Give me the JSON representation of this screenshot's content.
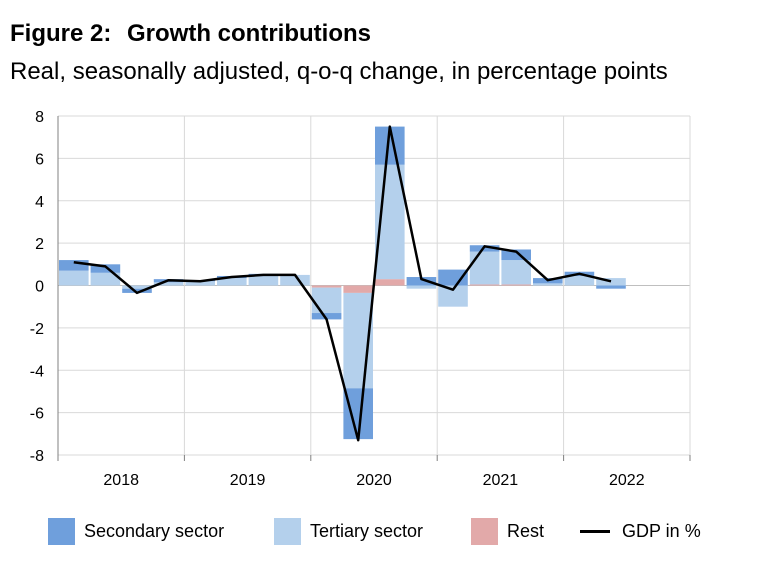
{
  "header": {
    "figure_label": "Figure 2:",
    "title": "Growth contributions",
    "subtitle": "Real, seasonally adjusted, q-o-q change, in percentage points"
  },
  "colors": {
    "secondary": "#6f9fdc",
    "tertiary": "#b4d0ec",
    "rest": "#e2a9a9",
    "gdp": "#000000",
    "grid": "#d9d9d9",
    "axis": "#bfbfbf"
  },
  "legend": {
    "secondary": "Secondary sector",
    "tertiary": "Tertiary sector",
    "rest": "Rest",
    "gdp": "GDP in %"
  },
  "chart_data": {
    "type": "bar",
    "stacked": true,
    "title": "Growth contributions",
    "subtitle": "Real, seasonally adjusted, q-o-q change, in percentage points",
    "ylim": [
      -8,
      8
    ],
    "yticks": [
      "8",
      "6",
      "4",
      "2",
      "0",
      "-2",
      "-4",
      "-6",
      "-8"
    ],
    "ytick_values": [
      8,
      6,
      4,
      2,
      0,
      -2,
      -4,
      -6,
      -8
    ],
    "year_labels": [
      "2018",
      "2019",
      "2020",
      "2021",
      "2022"
    ],
    "quarters": [
      "2018 Q1",
      "2018 Q2",
      "2018 Q3",
      "2018 Q4",
      "2019 Q1",
      "2019 Q2",
      "2019 Q3",
      "2019 Q4",
      "2020 Q1",
      "2020 Q2",
      "2020 Q3",
      "2020 Q4",
      "2021 Q1",
      "2021 Q2",
      "2021 Q3",
      "2021 Q4",
      "2022 Q1",
      "2022 Q2",
      "2022 Q3",
      "2022 Q4"
    ],
    "grid": true,
    "legend_position": "bottom",
    "series": [
      {
        "name": "Secondary sector",
        "values": [
          0.5,
          0.4,
          -0.2,
          0.15,
          0.05,
          0.1,
          0.1,
          0.0,
          -0.3,
          -2.4,
          1.8,
          0.4,
          0.75,
          0.3,
          0.5,
          0.25,
          0.2,
          -0.15,
          null,
          null
        ]
      },
      {
        "name": "Tertiary sector",
        "values": [
          0.7,
          0.6,
          -0.15,
          0.15,
          0.2,
          0.35,
          0.45,
          0.5,
          -1.2,
          -4.5,
          5.4,
          -0.15,
          -1.0,
          1.55,
          1.15,
          0.1,
          0.45,
          0.35,
          null,
          null
        ]
      },
      {
        "name": "Rest",
        "values": [
          0.0,
          0.0,
          0.0,
          0.0,
          0.0,
          0.0,
          0.0,
          0.0,
          -0.1,
          -0.35,
          0.3,
          0.0,
          0.0,
          0.05,
          0.05,
          0.0,
          0.0,
          0.0,
          null,
          null
        ]
      },
      {
        "name": "GDP in %",
        "type": "line",
        "values": [
          1.1,
          0.9,
          -0.35,
          0.25,
          0.2,
          0.4,
          0.5,
          0.5,
          -1.6,
          -7.3,
          7.5,
          0.3,
          -0.2,
          1.85,
          1.6,
          0.25,
          0.55,
          0.2,
          null,
          null
        ]
      }
    ]
  }
}
